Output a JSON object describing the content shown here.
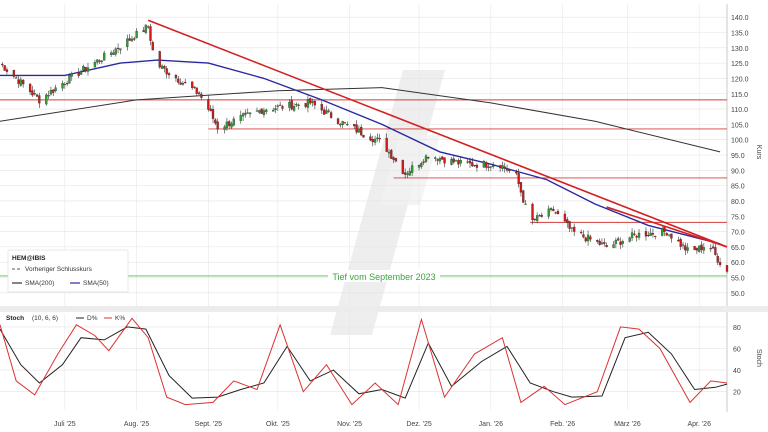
{
  "chart_data": [
    {
      "type": "candlestick",
      "symbol": "HEM@IBIS",
      "ylabel": "Kurs",
      "ylim": [
        47,
        143
      ],
      "y_ticks": [
        50,
        55,
        60,
        65,
        70,
        75,
        80,
        85,
        90,
        95,
        100,
        105,
        110,
        115,
        120,
        125,
        130,
        135,
        140
      ],
      "x_ticks": [
        {
          "label": "Juli '25",
          "date": "2025-07-01"
        },
        {
          "label": "Aug. '25",
          "date": "2025-08-01"
        },
        {
          "label": "Sept. '25",
          "date": "2025-09-01"
        },
        {
          "label": "Okt. '25",
          "date": "2025-10-01"
        },
        {
          "label": "Nov. '25",
          "date": "2025-11-01"
        },
        {
          "label": "Dez. '25",
          "date": "2025-12-01"
        },
        {
          "label": "Jan. '26",
          "date": "2026-01-01"
        },
        {
          "label": "Feb. '26",
          "date": "2026-02-01"
        },
        {
          "label": "März '26",
          "date": "2026-03-01"
        },
        {
          "label": "Apr. '26",
          "date": "2026-04-01"
        }
      ],
      "xlim": [
        "2025-06-03",
        "2026-04-13"
      ],
      "grid": true,
      "legend": [
        {
          "label": "Vorheriger Schlusskurs",
          "style": "dashed",
          "color": "#555555"
        },
        {
          "label": "SMA(200)",
          "color": "#333333"
        },
        {
          "label": "SMA(50)",
          "color": "#2a2aa0"
        }
      ],
      "key_points": [
        {
          "date": "2025-06-03",
          "close": 125
        },
        {
          "date": "2025-06-20",
          "close": 113
        },
        {
          "date": "2025-07-01",
          "close": 119
        },
        {
          "date": "2025-07-20",
          "close": 128
        },
        {
          "date": "2025-08-06",
          "close": 137
        },
        {
          "date": "2025-08-09",
          "close": 125
        },
        {
          "date": "2025-08-28",
          "close": 115
        },
        {
          "date": "2025-09-01",
          "close": 110
        },
        {
          "date": "2025-09-05",
          "close": 104
        },
        {
          "date": "2025-09-25",
          "close": 110
        },
        {
          "date": "2025-10-15",
          "close": 112
        },
        {
          "date": "2025-10-30",
          "close": 105
        },
        {
          "date": "2025-11-15",
          "close": 99
        },
        {
          "date": "2025-11-25",
          "close": 89
        },
        {
          "date": "2025-12-05",
          "close": 95
        },
        {
          "date": "2025-12-20",
          "close": 92
        },
        {
          "date": "2026-01-05",
          "close": 92
        },
        {
          "date": "2026-01-12",
          "close": 88
        },
        {
          "date": "2026-01-18",
          "close": 73
        },
        {
          "date": "2026-01-28",
          "close": 77
        },
        {
          "date": "2026-02-05",
          "close": 70
        },
        {
          "date": "2026-02-20",
          "close": 65
        },
        {
          "date": "2026-03-05",
          "close": 69
        },
        {
          "date": "2026-03-18",
          "close": 70
        },
        {
          "date": "2026-03-28",
          "close": 63
        },
        {
          "date": "2026-04-05",
          "close": 66
        },
        {
          "date": "2026-04-09",
          "close": 61
        },
        {
          "date": "2026-04-13",
          "close": 57
        }
      ],
      "sma200": [
        {
          "date": "2025-06-03",
          "value": 106
        },
        {
          "date": "2025-08-01",
          "value": 113
        },
        {
          "date": "2025-10-01",
          "value": 116
        },
        {
          "date": "2025-11-15",
          "value": 117
        },
        {
          "date": "2026-01-01",
          "value": 112
        },
        {
          "date": "2026-02-15",
          "value": 106
        },
        {
          "date": "2026-04-10",
          "value": 96
        }
      ],
      "sma50": [
        {
          "date": "2025-06-03",
          "value": 121
        },
        {
          "date": "2025-07-01",
          "value": 121
        },
        {
          "date": "2025-07-25",
          "value": 125
        },
        {
          "date": "2025-08-10",
          "value": 126
        },
        {
          "date": "2025-09-01",
          "value": 125
        },
        {
          "date": "2025-09-25",
          "value": 120
        },
        {
          "date": "2025-10-20",
          "value": 113
        },
        {
          "date": "2025-11-15",
          "value": 105
        },
        {
          "date": "2025-12-10",
          "value": 96
        },
        {
          "date": "2026-01-01",
          "value": 92
        },
        {
          "date": "2026-01-25",
          "value": 87
        },
        {
          "date": "2026-02-15",
          "value": 79
        },
        {
          "date": "2026-03-10",
          "value": 72
        },
        {
          "date": "2026-04-10",
          "value": 66
        }
      ],
      "trendlines": [
        {
          "from": {
            "date": "2025-08-06",
            "value": 139
          },
          "to": {
            "date": "2026-04-13",
            "value": 65
          },
          "color": "#d42020"
        },
        {
          "from": {
            "date": "2026-02-20",
            "value": 78
          },
          "to": {
            "date": "2026-04-13",
            "value": 65
          },
          "color": "#d42020"
        }
      ],
      "horizontal_lines": [
        {
          "value": 113,
          "from": "2025-06-03",
          "color": "#d43c3c"
        },
        {
          "value": 103.5,
          "from": "2025-09-01",
          "color": "#d43c3c"
        },
        {
          "value": 87.5,
          "from": "2025-11-20",
          "color": "#d43c3c"
        },
        {
          "value": 73,
          "from": "2026-01-18",
          "color": "#d43c3c"
        },
        {
          "value": 55.5,
          "from": "2025-06-03",
          "color": "#4fbf4f",
          "label": "Tief vom September 2023"
        }
      ],
      "colors": {
        "up": "#2f9e2f",
        "down": "#cc1a1a",
        "wick": "#333333"
      }
    },
    {
      "type": "line",
      "title": "Stoch",
      "params": "(10, 6, 6)",
      "ylabel": "Stoch",
      "ylim": [
        3,
        92
      ],
      "y_ticks": [
        20,
        40,
        60,
        80
      ],
      "grid": true,
      "series": [
        {
          "name": "D%",
          "color": "#222222",
          "values": [
            {
              "date": "2025-06-03",
              "value": 78
            },
            {
              "date": "2025-06-12",
              "value": 45
            },
            {
              "date": "2025-06-20",
              "value": 28
            },
            {
              "date": "2025-06-30",
              "value": 45
            },
            {
              "date": "2025-07-08",
              "value": 70
            },
            {
              "date": "2025-07-18",
              "value": 68
            },
            {
              "date": "2025-07-28",
              "value": 80
            },
            {
              "date": "2025-08-05",
              "value": 78
            },
            {
              "date": "2025-08-15",
              "value": 35
            },
            {
              "date": "2025-08-25",
              "value": 14
            },
            {
              "date": "2025-09-05",
              "value": 15
            },
            {
              "date": "2025-09-15",
              "value": 22
            },
            {
              "date": "2025-09-25",
              "value": 28
            },
            {
              "date": "2025-10-05",
              "value": 62
            },
            {
              "date": "2025-10-15",
              "value": 30
            },
            {
              "date": "2025-10-25",
              "value": 40
            },
            {
              "date": "2025-11-05",
              "value": 18
            },
            {
              "date": "2025-11-15",
              "value": 22
            },
            {
              "date": "2025-11-25",
              "value": 14
            },
            {
              "date": "2025-12-05",
              "value": 65
            },
            {
              "date": "2025-12-15",
              "value": 25
            },
            {
              "date": "2025-12-28",
              "value": 48
            },
            {
              "date": "2026-01-08",
              "value": 62
            },
            {
              "date": "2026-01-18",
              "value": 28
            },
            {
              "date": "2026-01-28",
              "value": 20
            },
            {
              "date": "2026-02-05",
              "value": 15
            },
            {
              "date": "2026-02-18",
              "value": 16
            },
            {
              "date": "2026-02-28",
              "value": 70
            },
            {
              "date": "2026-03-10",
              "value": 75
            },
            {
              "date": "2026-03-20",
              "value": 55
            },
            {
              "date": "2026-03-30",
              "value": 22
            },
            {
              "date": "2026-04-08",
              "value": 24
            },
            {
              "date": "2026-04-13",
              "value": 27
            }
          ]
        },
        {
          "name": "K%",
          "color": "#dc3232",
          "values": [
            {
              "date": "2025-06-03",
              "value": 82
            },
            {
              "date": "2025-06-10",
              "value": 30
            },
            {
              "date": "2025-06-18",
              "value": 17
            },
            {
              "date": "2025-06-28",
              "value": 55
            },
            {
              "date": "2025-07-06",
              "value": 82
            },
            {
              "date": "2025-07-14",
              "value": 72
            },
            {
              "date": "2025-07-20",
              "value": 58
            },
            {
              "date": "2025-07-30",
              "value": 88
            },
            {
              "date": "2025-08-06",
              "value": 70
            },
            {
              "date": "2025-08-14",
              "value": 15
            },
            {
              "date": "2025-08-22",
              "value": 8
            },
            {
              "date": "2025-09-03",
              "value": 10
            },
            {
              "date": "2025-09-12",
              "value": 30
            },
            {
              "date": "2025-09-22",
              "value": 22
            },
            {
              "date": "2025-10-02",
              "value": 82
            },
            {
              "date": "2025-10-12",
              "value": 20
            },
            {
              "date": "2025-10-22",
              "value": 45
            },
            {
              "date": "2025-11-02",
              "value": 8
            },
            {
              "date": "2025-11-12",
              "value": 28
            },
            {
              "date": "2025-11-22",
              "value": 8
            },
            {
              "date": "2025-12-02",
              "value": 87
            },
            {
              "date": "2025-12-12",
              "value": 15
            },
            {
              "date": "2025-12-25",
              "value": 55
            },
            {
              "date": "2026-01-06",
              "value": 70
            },
            {
              "date": "2026-01-14",
              "value": 10
            },
            {
              "date": "2026-01-24",
              "value": 25
            },
            {
              "date": "2026-02-02",
              "value": 8
            },
            {
              "date": "2026-02-16",
              "value": 20
            },
            {
              "date": "2026-02-26",
              "value": 80
            },
            {
              "date": "2026-03-06",
              "value": 78
            },
            {
              "date": "2026-03-15",
              "value": 60
            },
            {
              "date": "2026-03-28",
              "value": 10
            },
            {
              "date": "2026-04-06",
              "value": 30
            },
            {
              "date": "2026-04-13",
              "value": 28
            }
          ]
        }
      ]
    }
  ],
  "ui": {
    "legend_symbol": "HEM@IBIS",
    "legend_prev_close": "Vorheriger Schlusskurs",
    "legend_sma200": "SMA(200)",
    "legend_sma50": "SMA(50)",
    "level_label": "Tief vom September 2023",
    "price_axis_label": "Kurs",
    "stoch_title": "Stoch",
    "stoch_params": "(10, 6, 6)",
    "stoch_d_label": "D%",
    "stoch_k_label": "K%",
    "stoch_axis_label": "Stoch"
  }
}
